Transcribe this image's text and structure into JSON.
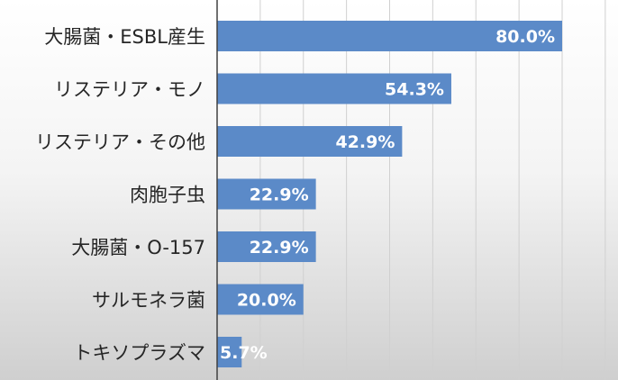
{
  "chart_data": {
    "type": "bar",
    "orientation": "horizontal",
    "categories": [
      "大腸菌・ESBL産生",
      "リステリア・モノ",
      "リステリア・その他",
      "肉胞子虫",
      "大腸菌・O-157",
      "サルモネラ菌",
      "トキソプラズマ"
    ],
    "values": [
      80.0,
      54.3,
      42.9,
      22.9,
      22.9,
      20.0,
      5.7
    ],
    "data_labels": [
      "80.0%",
      "54.3%",
      "42.9%",
      "22.9%",
      "22.9%",
      "20.0%",
      "5.7%"
    ],
    "xlim": [
      0,
      90
    ],
    "grid": true,
    "bar_color": "#5b8ac8",
    "title": "",
    "xlabel": "",
    "ylabel": ""
  }
}
